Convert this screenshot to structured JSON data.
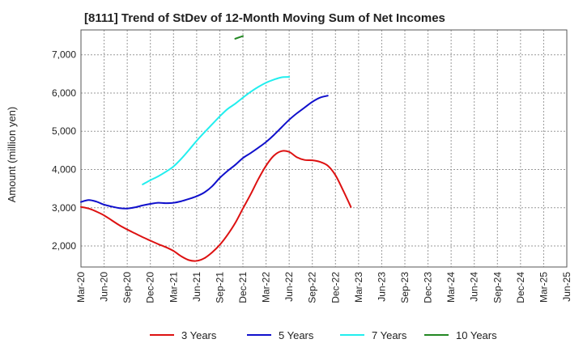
{
  "chart_data": {
    "type": "line",
    "title": "[8111]  Trend of StDev of 12-Month Moving Sum of Net Incomes",
    "xlabel": "",
    "ylabel": "Amount (million yen)",
    "ylim": [
      1450,
      7650
    ],
    "yticks": [
      2000,
      3000,
      4000,
      5000,
      6000,
      7000
    ],
    "ytick_labels": [
      "2,000",
      "3,000",
      "4,000",
      "5,000",
      "6,000",
      "7,000"
    ],
    "xtick_labels": [
      "Mar-20",
      "Jun-20",
      "Sep-20",
      "Dec-20",
      "Mar-21",
      "Jun-21",
      "Sep-21",
      "Dec-21",
      "Mar-22",
      "Jun-22",
      "Sep-22",
      "Dec-22",
      "Mar-23",
      "Jun-23",
      "Sep-23",
      "Dec-23",
      "Mar-24",
      "Jun-24",
      "Sep-24",
      "Dec-24",
      "Mar-25",
      "Jun-25"
    ],
    "grid": true,
    "legend_position": "bottom",
    "series": [
      {
        "name": "3 Years",
        "color": "#dd1111",
        "start_index": 0,
        "values": [
          3020,
          2980,
          2900,
          2800,
          2670,
          2540,
          2430,
          2330,
          2230,
          2140,
          2050,
          1970,
          1870,
          1730,
          1630,
          1610,
          1680,
          1830,
          2030,
          2290,
          2600,
          2980,
          3350,
          3750,
          4100,
          4360,
          4480,
          4460,
          4320,
          4250,
          4240,
          4200,
          4100,
          3850,
          3450,
          3020
        ]
      },
      {
        "name": "5 Years",
        "color": "#1010cc",
        "start_index": 0,
        "values": [
          3150,
          3200,
          3160,
          3080,
          3030,
          2990,
          2980,
          3010,
          3060,
          3100,
          3130,
          3120,
          3130,
          3170,
          3230,
          3300,
          3400,
          3560,
          3780,
          3960,
          4120,
          4300,
          4430,
          4570,
          4720,
          4900,
          5100,
          5300,
          5470,
          5620,
          5770,
          5880,
          5930
        ]
      },
      {
        "name": "7 Years",
        "color": "#22eeee",
        "start_index": 8,
        "values": [
          3610,
          3720,
          3820,
          3940,
          4080,
          4280,
          4510,
          4750,
          4970,
          5180,
          5390,
          5580,
          5720,
          5880,
          6030,
          6160,
          6270,
          6350,
          6410,
          6420
        ]
      },
      {
        "name": "10 Years",
        "color": "#228822",
        "start_index": 20,
        "values": [
          7420,
          7490
        ]
      }
    ]
  }
}
